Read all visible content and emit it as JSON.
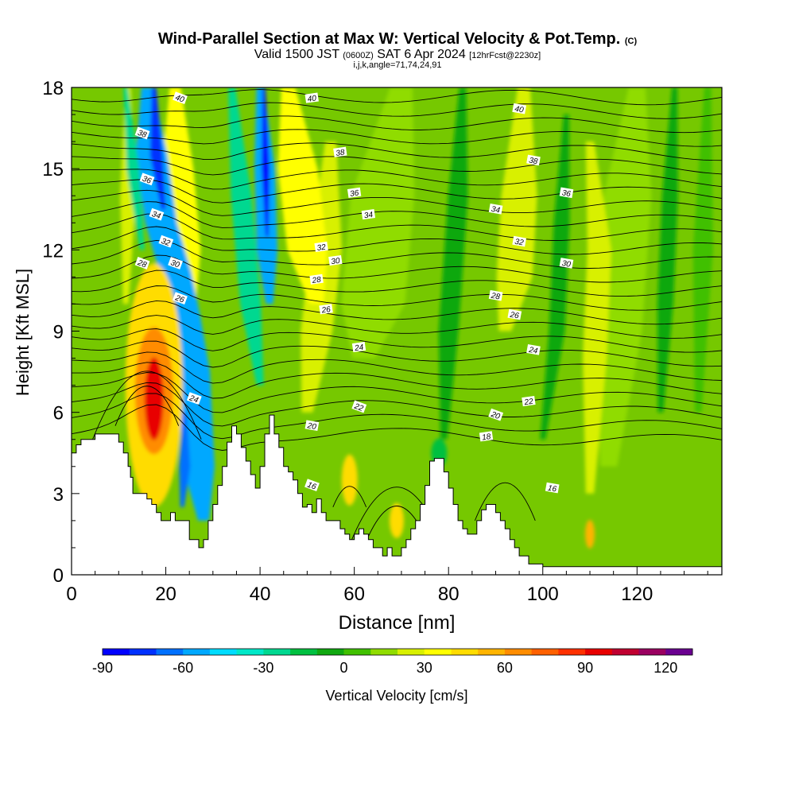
{
  "header": {
    "title_main": "Wind-Parallel Section at Max W: Vertical Velocity & Pot.Temp.",
    "title_copyright": "(C)",
    "subtitle_valid": "Valid 1500 JST",
    "subtitle_utc": "(0600Z)",
    "subtitle_date": "SAT 6 Apr 2024",
    "subtitle_fcst": "[12hrFcst@2230z]",
    "subtitle_indices": "i,j,k,angle=71,74,24,91"
  },
  "chart_data": {
    "type": "heatmap",
    "xlabel": "Distance [nm]",
    "ylabel": "Height [Kft MSL]",
    "xlim": [
      0,
      138
    ],
    "ylim": [
      0,
      18
    ],
    "x_ticks": [
      0,
      20,
      40,
      60,
      80,
      100,
      120
    ],
    "y_ticks": [
      0,
      3,
      6,
      9,
      12,
      15,
      18
    ],
    "colorbar": {
      "label": "Vertical Velocity [cm/s]",
      "ticks": [
        -90,
        -60,
        -30,
        0,
        30,
        60,
        90,
        120
      ],
      "range": [
        -90,
        130
      ],
      "step": 10,
      "colors": [
        "#0000ff",
        "#0030ff",
        "#0070ff",
        "#00a8ff",
        "#00dcff",
        "#00e8c8",
        "#00d890",
        "#00c040",
        "#10a810",
        "#40c000",
        "#90dc00",
        "#d8f000",
        "#ffff00",
        "#ffdc00",
        "#ffb400",
        "#ff8c00",
        "#ff6000",
        "#ff3000",
        "#e80000",
        "#c00030",
        "#9a0060",
        "#6a0090"
      ]
    },
    "theta_contour_labels": [
      {
        "value": 40,
        "x": 23,
        "y": 17.6
      },
      {
        "value": 40,
        "x": 51,
        "y": 17.6
      },
      {
        "value": 40,
        "x": 95,
        "y": 17.2
      },
      {
        "value": 38,
        "x": 15,
        "y": 16.3
      },
      {
        "value": 38,
        "x": 57,
        "y": 15.6
      },
      {
        "value": 38,
        "x": 98,
        "y": 15.3
      },
      {
        "value": 36,
        "x": 16,
        "y": 14.6
      },
      {
        "value": 36,
        "x": 60,
        "y": 14.1
      },
      {
        "value": 36,
        "x": 105,
        "y": 14.1
      },
      {
        "value": 34,
        "x": 18,
        "y": 13.3
      },
      {
        "value": 34,
        "x": 63,
        "y": 13.3
      },
      {
        "value": 34,
        "x": 90,
        "y": 13.5
      },
      {
        "value": 32,
        "x": 20,
        "y": 12.3
      },
      {
        "value": 32,
        "x": 53,
        "y": 12.1
      },
      {
        "value": 32,
        "x": 95,
        "y": 12.3
      },
      {
        "value": 30,
        "x": 22,
        "y": 11.5
      },
      {
        "value": 30,
        "x": 56,
        "y": 11.6
      },
      {
        "value": 30,
        "x": 105,
        "y": 11.5
      },
      {
        "value": 28,
        "x": 15,
        "y": 11.5
      },
      {
        "value": 28,
        "x": 52,
        "y": 10.9
      },
      {
        "value": 28,
        "x": 90,
        "y": 10.3
      },
      {
        "value": 26,
        "x": 23,
        "y": 10.2
      },
      {
        "value": 26,
        "x": 54,
        "y": 9.8
      },
      {
        "value": 26,
        "x": 94,
        "y": 9.6
      },
      {
        "value": 24,
        "x": 26,
        "y": 6.5
      },
      {
        "value": 24,
        "x": 61,
        "y": 8.4
      },
      {
        "value": 24,
        "x": 98,
        "y": 8.3
      },
      {
        "value": 22,
        "x": 61,
        "y": 6.2
      },
      {
        "value": 22,
        "x": 97,
        "y": 6.4
      },
      {
        "value": 20,
        "x": 51,
        "y": 5.5
      },
      {
        "value": 20,
        "x": 90,
        "y": 5.9
      },
      {
        "value": 18,
        "x": 88,
        "y": 5.1
      },
      {
        "value": 16,
        "x": 102,
        "y": 3.2
      },
      {
        "value": 16,
        "x": 51,
        "y": 3.3
      }
    ]
  },
  "colors": {
    "background": "#ffffff",
    "base_field": "#76c800"
  }
}
